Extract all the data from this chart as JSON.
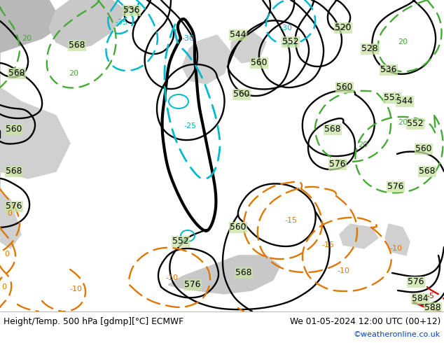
{
  "title_left": "Height/Temp. 500 hPa [gdmp][°C] ECMWF",
  "title_right": "We 01-05-2024 12:00 UTC (00+12)",
  "watermark": "©weatheronline.co.uk",
  "figsize": [
    6.34,
    4.9
  ],
  "dpi": 100,
  "map_bg_green": "#b8d890",
  "map_bg_green2": "#c8e4a0",
  "sea_gray": "#c8c8c8",
  "bottom_bg": "#ffffff",
  "height_contour_color": "#000000",
  "temp_cyan_color": "#00b8cc",
  "temp_green_color": "#44aa33",
  "temp_orange_color": "#dd7700",
  "temp_red_color": "#cc1100",
  "watermark_color": "#0044cc"
}
